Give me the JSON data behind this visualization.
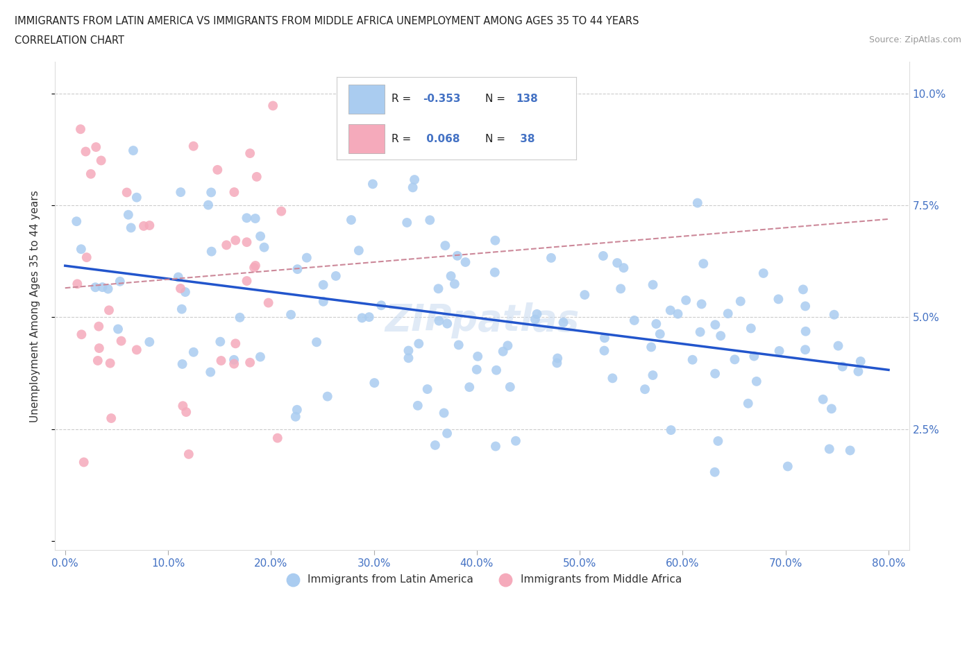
{
  "title_line1": "IMMIGRANTS FROM LATIN AMERICA VS IMMIGRANTS FROM MIDDLE AFRICA UNEMPLOYMENT AMONG AGES 35 TO 44 YEARS",
  "title_line2": "CORRELATION CHART",
  "source_text": "Source: ZipAtlas.com",
  "ylabel": "Unemployment Among Ages 35 to 44 years",
  "R_latin": -0.353,
  "N_latin": 138,
  "R_africa": 0.068,
  "N_africa": 38,
  "x_label_bottom": "Immigrants from Latin America",
  "x_label_bottom2": "Immigrants from Middle Africa",
  "latin_color": "#aaccf0",
  "africa_color": "#f5aabb",
  "latin_line_color": "#2255cc",
  "africa_line_color": "#cc8899",
  "background_color": "#ffffff",
  "xlim": [
    -0.01,
    0.82
  ],
  "ylim": [
    -0.002,
    0.107
  ],
  "x_ticks": [
    0.0,
    0.1,
    0.2,
    0.3,
    0.4,
    0.5,
    0.6,
    0.7,
    0.8
  ],
  "y_ticks": [
    0.0,
    0.025,
    0.05,
    0.075,
    0.1
  ],
  "tick_label_color": "#4472c4",
  "watermark": "ZIPpatlas",
  "title_color": "#222222",
  "source_color": "#999999"
}
